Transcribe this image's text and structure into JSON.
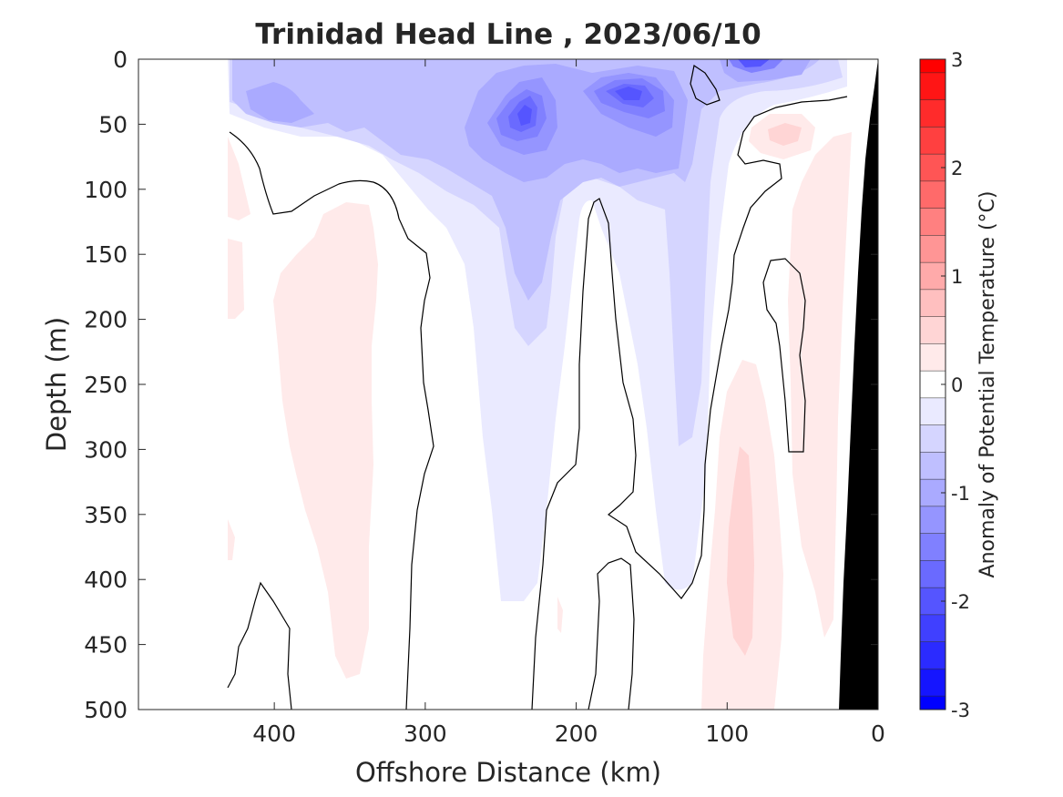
{
  "chart_data": {
    "type": "heatmap",
    "title": "Trinidad Head Line , 2023/06/10",
    "xlabel": "Offshore Distance (km)",
    "ylabel": "Depth (m)",
    "xlim": [
      490,
      0
    ],
    "ylim": [
      500,
      0
    ],
    "x_reversed": true,
    "y_reversed": true,
    "x_ticks": [
      400,
      300,
      200,
      100,
      0
    ],
    "y_ticks": [
      0,
      50,
      100,
      150,
      200,
      250,
      300,
      350,
      400,
      450,
      500
    ],
    "colorbar": {
      "label": "Anomaly of Potential Temperature (°C)",
      "range": [
        -3,
        3
      ],
      "ticks": [
        3,
        2,
        1,
        0,
        -1,
        -2,
        -3
      ],
      "levels": [
        -3,
        -2.75,
        -2.5,
        -2.25,
        -2,
        -1.75,
        -1.5,
        -1.25,
        -1,
        -0.75,
        -0.5,
        -0.25,
        0,
        0.25,
        0.5,
        0.75,
        1,
        1.25,
        1.5,
        1.75,
        2,
        2.25,
        2.5,
        2.75,
        3
      ],
      "colors": [
        "#0000ff",
        "#1515ff",
        "#2b2bff",
        "#4040ff",
        "#5555ff",
        "#6a6aff",
        "#8080ff",
        "#9595ff",
        "#aaaaff",
        "#bfbfff",
        "#d5d5ff",
        "#eaeaff",
        "#ffffff",
        "#ffeaea",
        "#ffd5d5",
        "#ffbfbf",
        "#ffaaaa",
        "#ff9595",
        "#ff8080",
        "#ff6a6a",
        "#ff5555",
        "#ff4040",
        "#ff2b2b",
        "#ff1515",
        "#ff0000"
      ]
    },
    "contour_line": 0,
    "features": [
      {
        "name": "near-surface cold core",
        "x_km": 232,
        "depth_m": 40,
        "anomaly": -2.0
      },
      {
        "name": "near-surface cold core",
        "x_km": 158,
        "depth_m": 28,
        "anomaly": -2.0
      },
      {
        "name": "near-surface cold core",
        "x_km": 88,
        "depth_m": 3,
        "anomaly": -2.0
      },
      {
        "name": "offshore warm tongue",
        "x_km": 355,
        "depth_m": 280,
        "anomaly": 0.25
      },
      {
        "name": "nearshore warm patch",
        "x_km": 60,
        "depth_m": 55,
        "anomaly": 0.5
      },
      {
        "name": "nearshore deep warm band",
        "x_km": 100,
        "depth_m": 400,
        "anomaly": 0.5
      }
    ],
    "data_start_km": 432,
    "bathymetry": "black bottom profile at 0-27 km offshore"
  }
}
